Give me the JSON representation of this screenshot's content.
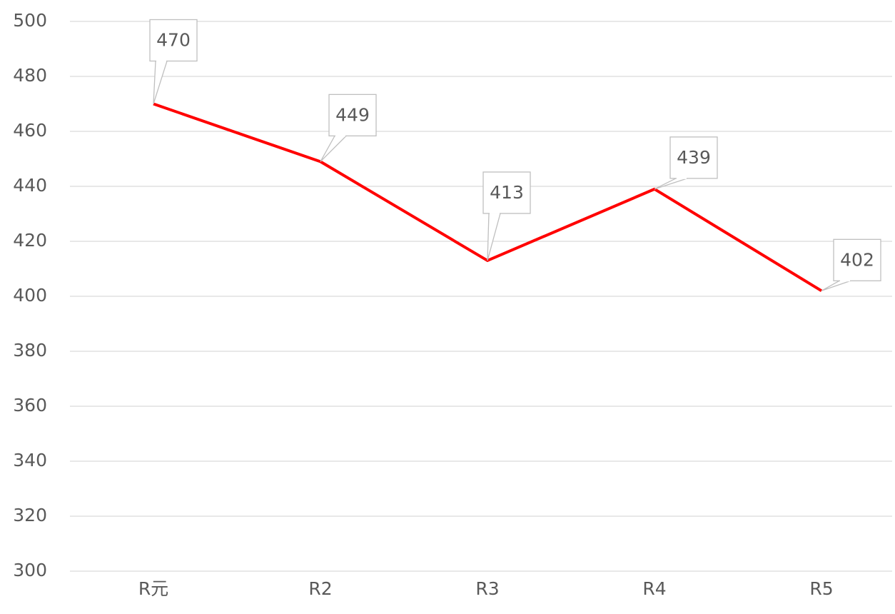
{
  "chart_data": {
    "type": "line",
    "categories": [
      "R元",
      "R2",
      "R3",
      "R4",
      "R5"
    ],
    "series": [
      {
        "name": "",
        "color": "#ff0000",
        "values": [
          470,
          449,
          413,
          439,
          402
        ]
      }
    ],
    "ylim": [
      300,
      500
    ],
    "yticks": [
      300,
      320,
      340,
      360,
      380,
      400,
      420,
      440,
      460,
      480,
      500
    ],
    "grid": true
  }
}
